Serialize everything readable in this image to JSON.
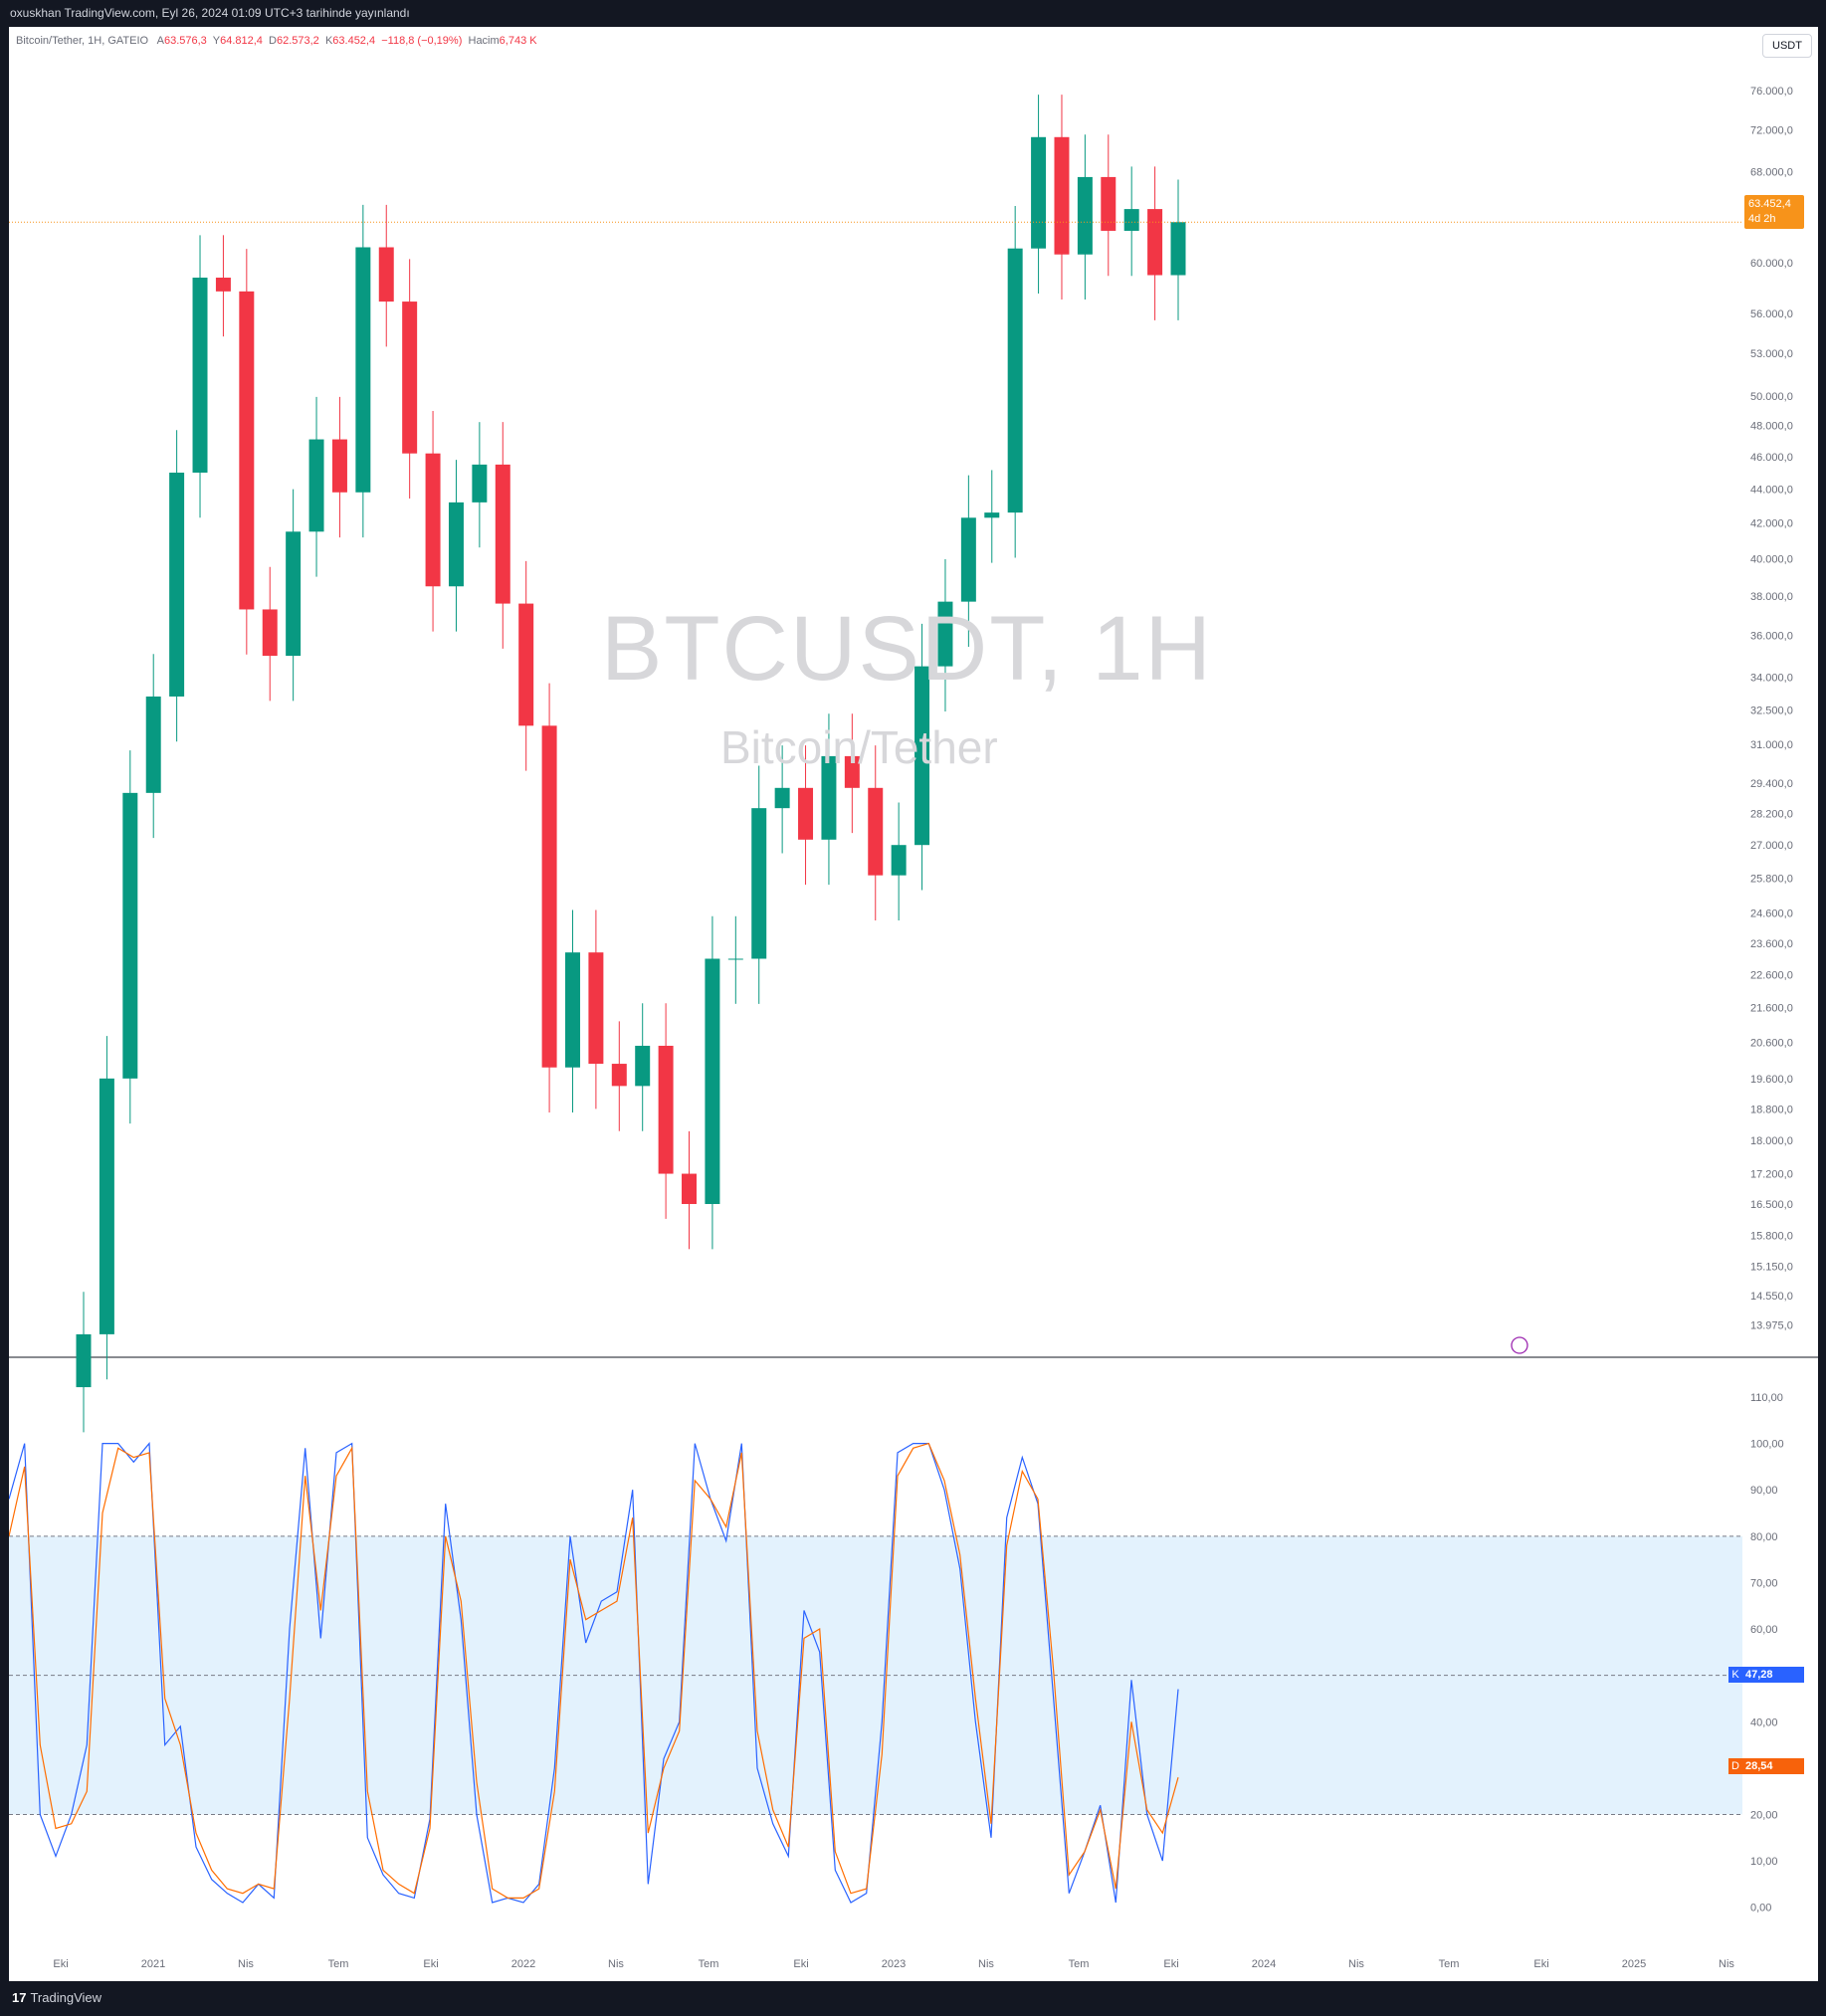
{
  "header": {
    "publish_line": "oxuskhan TradingView.com, Eyl 26, 2024 01:09 UTC+3 tarihinde yayınlandı"
  },
  "legend": {
    "symbol": "Bitcoin/Tether, 1H, GATEIO",
    "open_label": "A",
    "open": "63.576,3",
    "high_label": "Y",
    "high": "64.812,4",
    "low_label": "D",
    "low": "62.573,2",
    "close_label": "K",
    "close": "63.452,4",
    "change": "−118,8 (−0,19%)",
    "volume_label": "Hacim",
    "volume": "6,743 K"
  },
  "currency_button": "USDT",
  "watermark": {
    "symbol": "BTCUSDT, 1H",
    "name": "Bitcoin/Tether"
  },
  "last_price": {
    "value": "63.452,4",
    "countdown": "4d 2h"
  },
  "stoch_labels": {
    "k_tag": "K",
    "k_value": "47,28",
    "d_tag": "D",
    "d_value": "28,54"
  },
  "footer": {
    "logo": "17",
    "brand": "TradingView"
  },
  "colors": {
    "up": "#089981",
    "down": "#f23645",
    "k_line": "#2962ff",
    "d_line": "#ff6d00",
    "band": "#e3f2fd",
    "last_price": "#f7931a"
  },
  "chart_data": [
    {
      "type": "candlestick",
      "title": "Bitcoin/Tether, 1H, GATEIO",
      "y_scale": "log",
      "ylim": [
        13500,
        78000
      ],
      "y_ticks": [
        76000,
        72000,
        68000,
        64000,
        60000,
        56000,
        53000,
        50000,
        48000,
        46000,
        44000,
        42000,
        40000,
        38000,
        36000,
        34000,
        32500,
        31000,
        29400,
        28200,
        27000,
        25800,
        24600,
        23600,
        22600,
        21600,
        20600,
        19600,
        18800,
        18000,
        17200,
        16500,
        15800,
        15150,
        14550,
        13975
      ],
      "y_tick_labels": [
        "76.000,0",
        "72.000,0",
        "68.000,0",
        "64.000,0",
        "60.000,0",
        "56.000,0",
        "53.000,0",
        "50.000,0",
        "48.000,0",
        "46.000,0",
        "44.000,0",
        "42.000,0",
        "40.000,0",
        "38.000,0",
        "36.000,0",
        "34.000,0",
        "32.500,0",
        "31.000,0",
        "29.400,0",
        "28.200,0",
        "27.000,0",
        "25.800,0",
        "24.600,0",
        "23.600,0",
        "22.600,0",
        "21.600,0",
        "20.600,0",
        "19.600,0",
        "18.800,0",
        "18.000,0",
        "17.200,0",
        "16.500,0",
        "15.800,0",
        "15.150,0",
        "14.550,0",
        "13.975,0"
      ],
      "x_tick_labels": [
        "Eki",
        "2021",
        "Nis",
        "Tem",
        "Eki",
        "2022",
        "Nis",
        "Tem",
        "Eki",
        "2023",
        "Nis",
        "Tem",
        "Eki",
        "2024",
        "Nis",
        "Tem",
        "Eki",
        "2025",
        "Nis"
      ],
      "last_price": 63452.4,
      "series": [
        {
          "x": "2020-10",
          "close": 13800
        },
        {
          "x": "2020-11",
          "close": 19600
        },
        {
          "x": "2020-12",
          "close": 29000
        },
        {
          "x": "2021-01",
          "close": 33100
        },
        {
          "x": "2021-02",
          "close": 45000
        },
        {
          "x": "2021-03",
          "close": 58800
        },
        {
          "x": "2021-04",
          "close": 57700
        },
        {
          "x": "2021-05",
          "close": 37300
        },
        {
          "x": "2021-06",
          "close": 35000
        },
        {
          "x": "2021-07",
          "close": 41500
        },
        {
          "x": "2021-08",
          "close": 47100
        },
        {
          "x": "2021-09",
          "close": 43800
        },
        {
          "x": "2021-10",
          "close": 61300
        },
        {
          "x": "2021-11",
          "close": 56900
        },
        {
          "x": "2021-12",
          "close": 46200
        },
        {
          "x": "2022-01",
          "close": 38500
        },
        {
          "x": "2022-02",
          "close": 43200
        },
        {
          "x": "2022-03",
          "close": 45500
        },
        {
          "x": "2022-04",
          "close": 37600
        },
        {
          "x": "2022-05",
          "close": 31800
        },
        {
          "x": "2022-06",
          "close": 19900
        },
        {
          "x": "2022-07",
          "close": 23300
        },
        {
          "x": "2022-08",
          "close": 20000
        },
        {
          "x": "2022-09",
          "close": 19400
        },
        {
          "x": "2022-10",
          "close": 20500
        },
        {
          "x": "2022-11",
          "close": 17200
        },
        {
          "x": "2022-12",
          "close": 16500
        },
        {
          "x": "2023-01",
          "close": 23100
        },
        {
          "x": "2023-02",
          "close": 23100
        },
        {
          "x": "2023-03",
          "close": 28400
        },
        {
          "x": "2023-04",
          "close": 29200
        },
        {
          "x": "2023-05",
          "close": 27200
        },
        {
          "x": "2023-06",
          "close": 30500
        },
        {
          "x": "2023-07",
          "close": 29200
        },
        {
          "x": "2023-08",
          "close": 25900
        },
        {
          "x": "2023-09",
          "close": 27000
        },
        {
          "x": "2023-10",
          "close": 34500
        },
        {
          "x": "2023-11",
          "close": 37700
        },
        {
          "x": "2023-12",
          "close": 42300
        },
        {
          "x": "2024-01",
          "close": 42600
        },
        {
          "x": "2024-02",
          "close": 61200
        },
        {
          "x": "2024-03",
          "close": 71300
        },
        {
          "x": "2024-04",
          "close": 60700
        },
        {
          "x": "2024-05",
          "close": 67500
        },
        {
          "x": "2024-06",
          "close": 62700
        },
        {
          "x": "2024-07",
          "close": 64600
        },
        {
          "x": "2024-08",
          "close": 59000
        },
        {
          "x": "2024-09",
          "close": 63452
        }
      ]
    },
    {
      "type": "line",
      "ylim": [
        -5,
        110
      ],
      "y_ticks": [
        110,
        100,
        90,
        80,
        70,
        60,
        50,
        40,
        30,
        20,
        10,
        0
      ],
      "y_tick_labels": [
        "110,00",
        "100,00",
        "90,00",
        "80,00",
        "70,00",
        "60,00",
        "50,00",
        "40,00",
        "30,00",
        "20,00",
        "10,00",
        "0,00"
      ],
      "bands": {
        "upper": 80,
        "middle": 50,
        "lower": 20
      },
      "series": [
        {
          "name": "K",
          "values": [
            88,
            100,
            20,
            11,
            20,
            35,
            100,
            100,
            96,
            100,
            35,
            39,
            13,
            6,
            3,
            1,
            5,
            2,
            60,
            99,
            58,
            98,
            100,
            15,
            7,
            3,
            2,
            19,
            87,
            62,
            20,
            1,
            2,
            1,
            5,
            30,
            80,
            57,
            66,
            68,
            90,
            5,
            32,
            40,
            100,
            88,
            79,
            100,
            30,
            18,
            11,
            64,
            55,
            8,
            1,
            3,
            40,
            98,
            100,
            100,
            90,
            73,
            40,
            15,
            84,
            97,
            87,
            45,
            3,
            12,
            22,
            1,
            49,
            20,
            10,
            47
          ]
        },
        {
          "name": "D",
          "values": [
            80,
            95,
            35,
            17,
            18,
            25,
            85,
            99,
            97,
            98,
            45,
            35,
            16,
            8,
            4,
            3,
            5,
            4,
            45,
            93,
            64,
            93,
            99,
            25,
            8,
            5,
            3,
            17,
            80,
            66,
            27,
            4,
            2,
            2,
            4,
            25,
            75,
            62,
            64,
            66,
            84,
            16,
            30,
            38,
            92,
            88,
            82,
            98,
            38,
            21,
            13,
            58,
            60,
            12,
            3,
            4,
            33,
            93,
            99,
            100,
            92,
            76,
            45,
            18,
            78,
            94,
            88,
            51,
            7,
            12,
            21,
            4,
            40,
            21,
            16,
            28
          ]
        }
      ],
      "last": {
        "K": 47.28,
        "D": 28.54
      }
    }
  ]
}
